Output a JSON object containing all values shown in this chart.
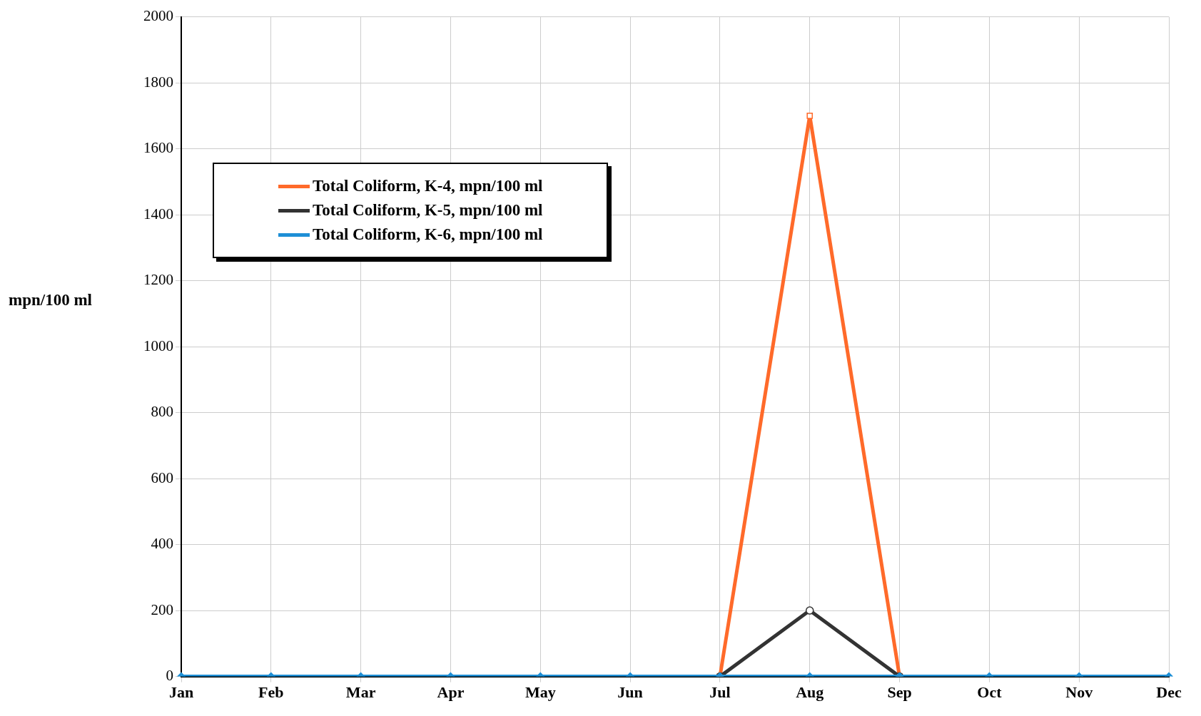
{
  "chart_data": {
    "type": "line",
    "ylabel": "mpn/100 ml",
    "categories": [
      "Jan",
      "Feb",
      "Mar",
      "Apr",
      "May",
      "Jun",
      "Jul",
      "Aug",
      "Sep",
      "Oct",
      "Nov",
      "Dec"
    ],
    "series": [
      {
        "name": "Total Coliform, K-4, mpn/100 ml",
        "color": "#ff6a2a",
        "marker": "square",
        "values": [
          null,
          null,
          null,
          null,
          null,
          null,
          0,
          1700,
          0,
          null,
          null,
          null
        ]
      },
      {
        "name": "Total Coliform, K-5, mpn/100 ml",
        "color": "#333333",
        "marker": "circle",
        "values": [
          null,
          null,
          null,
          null,
          null,
          null,
          0,
          200,
          0,
          null,
          null,
          null
        ]
      },
      {
        "name": "Total Coliform, K-6, mpn/100 ml",
        "color": "#1e8fd6",
        "marker": "diamond",
        "values": [
          0,
          0,
          0,
          0,
          0,
          0,
          0,
          0,
          0,
          0,
          0,
          0
        ]
      }
    ],
    "ylim": [
      0,
      2000
    ],
    "yticks": [
      0,
      200,
      400,
      600,
      800,
      1000,
      1200,
      1400,
      1600,
      1800,
      2000
    ],
    "grid": true,
    "legend": "top left",
    "line_style": "solid"
  }
}
